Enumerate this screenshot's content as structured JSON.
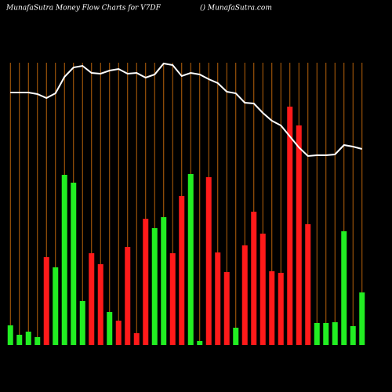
{
  "chart_data": {
    "type": "bar_line",
    "title": "MunafaSutra  Money Flow  Charts for V7DF",
    "subtitle": "() MunafaSutra.com",
    "values": [
      25,
      13,
      17,
      10,
      112,
      99,
      217,
      207,
      56,
      117,
      103,
      42,
      31,
      125,
      15,
      161,
      149,
      163,
      117,
      190,
      218,
      5,
      214,
      118,
      93,
      22,
      127,
      170,
      142,
      94,
      92,
      304,
      280,
      154,
      28,
      28,
      29,
      145,
      24,
      67
    ],
    "colors": [
      "#22ee22",
      "#22ee22",
      "#22ee22",
      "#22ee22",
      "#ff1a1a",
      "#22ee22",
      "#22ee22",
      "#22ee22",
      "#22ee22",
      "#ff1a1a",
      "#ff1a1a",
      "#22ee22",
      "#ff1a1a",
      "#ff1a1a",
      "#ff1a1a",
      "#ff1a1a",
      "#22ee22",
      "#22ee22",
      "#ff1a1a",
      "#ff1a1a",
      "#22ee22",
      "#22ee22",
      "#ff1a1a",
      "#ff1a1a",
      "#ff1a1a",
      "#22ee22",
      "#ff1a1a",
      "#ff1a1a",
      "#ff1a1a",
      "#ff1a1a",
      "#ff1a1a",
      "#ff1a1a",
      "#ff1a1a",
      "#ff1a1a",
      "#22ee22",
      "#22ee22",
      "#22ee22",
      "#22ee22",
      "#22ee22",
      "#22ee22"
    ],
    "line_values": [
      322,
      322,
      322,
      320,
      315,
      321,
      342,
      354,
      356,
      347,
      346,
      350,
      352,
      346,
      347,
      341,
      345,
      359,
      357,
      343,
      347,
      345,
      339,
      334,
      323,
      321,
      309,
      308,
      296,
      286,
      280,
      266,
      252,
      241,
      242,
      242,
      243,
      255,
      253,
      250
    ],
    "line_color": "#ffffff",
    "grid_color": "#b8620a",
    "ylim": [
      0,
      360
    ]
  }
}
